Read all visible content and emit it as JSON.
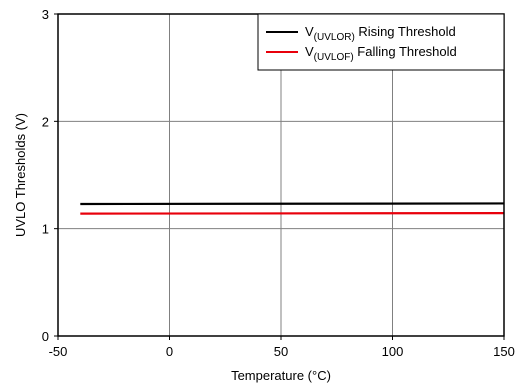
{
  "chart_data": {
    "type": "line",
    "xlabel": "Temperature (°C)",
    "ylabel": "UVLO Thresholds (V)",
    "xlim": [
      -50,
      150
    ],
    "ylim": [
      0,
      3
    ],
    "x_ticks": [
      -50,
      0,
      50,
      100,
      150
    ],
    "y_ticks": [
      0,
      1,
      2,
      3
    ],
    "grid": true,
    "legend_position": "top-right",
    "series": [
      {
        "name_main": "V",
        "name_sub": "(UVLOR)",
        "name_rest": " Rising Threshold",
        "color": "#000000",
        "x": [
          -40,
          150
        ],
        "y": [
          1.23,
          1.235
        ]
      },
      {
        "name_main": "V",
        "name_sub": "(UVLOF)",
        "name_rest": " Falling Threshold",
        "color": "#e8000b",
        "x": [
          -40,
          150
        ],
        "y": [
          1.14,
          1.145
        ]
      }
    ]
  }
}
